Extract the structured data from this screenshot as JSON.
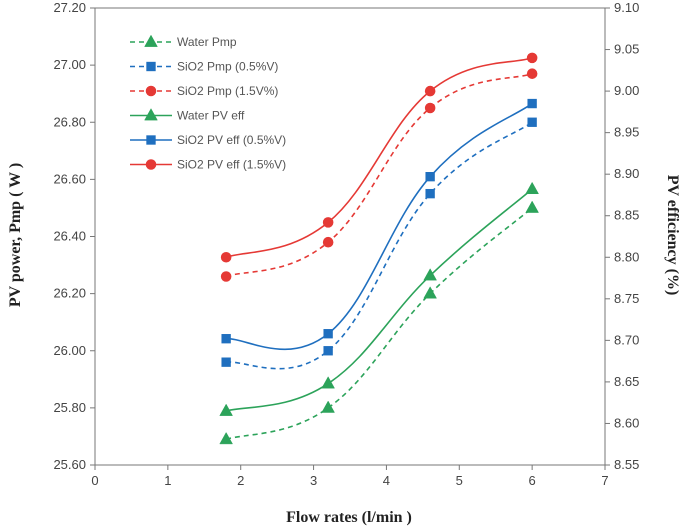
{
  "chart_data": {
    "type": "line",
    "xlabel": "Flow rates (l/min )",
    "ylabel": "PV power, Pmp ( W )",
    "y2label": "PV efficiency (%)",
    "xlim": [
      0,
      7
    ],
    "ylim": [
      25.6,
      27.2
    ],
    "y2lim": [
      8.55,
      9.1
    ],
    "x_ticks": [
      "0",
      "1",
      "2",
      "3",
      "4",
      "5",
      "6",
      "7"
    ],
    "y_ticks": [
      "25.60",
      "25.80",
      "26.00",
      "26.20",
      "26.40",
      "26.60",
      "26.80",
      "27.00",
      "27.20"
    ],
    "y2_ticks": [
      "8.55",
      "8.60",
      "8.65",
      "8.70",
      "8.75",
      "8.80",
      "8.85",
      "8.90",
      "8.95",
      "9.00",
      "9.05",
      "9.10"
    ],
    "grid": false,
    "legend": "top-left",
    "x": [
      1.8,
      3.2,
      4.6,
      6.0
    ],
    "series": [
      {
        "name": "Water Pmp",
        "axis": "left",
        "values": [
          25.69,
          25.8,
          26.2,
          26.5
        ],
        "color": "#2ca35a",
        "marker": "triangle",
        "dash": true
      },
      {
        "name": "SiO2 Pmp (0.5%V)",
        "axis": "left",
        "values": [
          25.96,
          26.0,
          26.55,
          26.8
        ],
        "color": "#1f6fbf",
        "marker": "square",
        "dash": true
      },
      {
        "name": "SiO2 Pmp (1.5V%)",
        "axis": "left",
        "values": [
          26.26,
          26.38,
          26.85,
          26.97
        ],
        "color": "#e53935",
        "marker": "circle",
        "dash": true
      },
      {
        "name": "Water PV eff",
        "axis": "right",
        "values": [
          8.615,
          8.648,
          8.778,
          8.882
        ],
        "color": "#2ca35a",
        "marker": "triangle",
        "dash": false
      },
      {
        "name": "SiO2 PV eff (0.5%V)",
        "axis": "right",
        "values": [
          8.702,
          8.708,
          8.897,
          8.985
        ],
        "color": "#1f6fbf",
        "marker": "square",
        "dash": false
      },
      {
        "name": "SiO2 PV eff (1.5%V)",
        "axis": "right",
        "values": [
          8.8,
          8.842,
          9.0,
          9.04
        ],
        "color": "#e53935",
        "marker": "circle",
        "dash": false
      }
    ]
  }
}
